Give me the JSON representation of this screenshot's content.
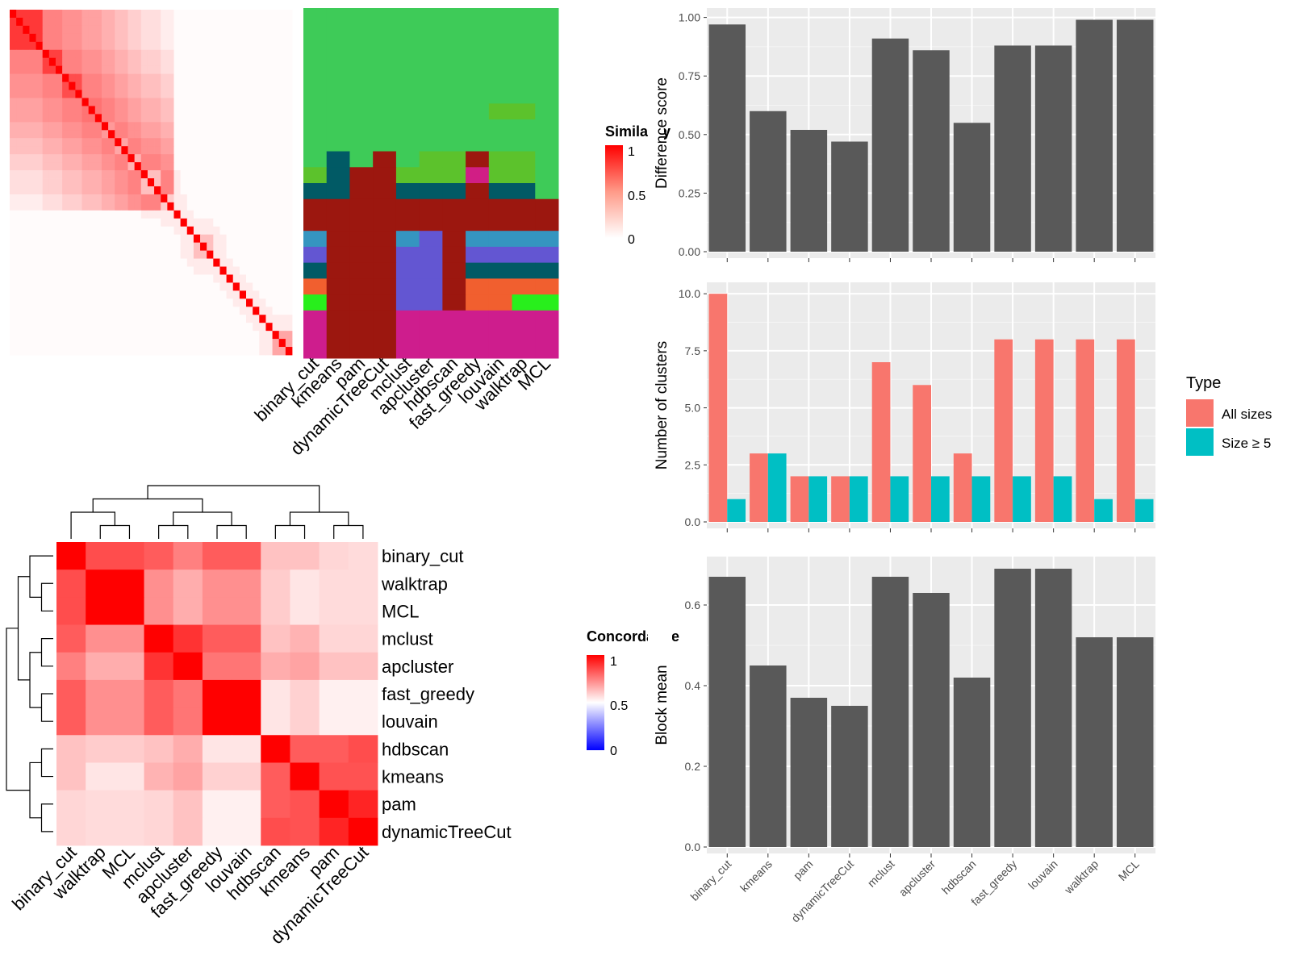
{
  "colors": {
    "panel_bg": "#ebebeb",
    "grid": "#ffffff",
    "bar_dark": "#595959",
    "all_sizes": "#f8766d",
    "size_ge5": "#00bfc4",
    "heat_high": "#ff0000",
    "heat_low": "#ffffff",
    "concordance_low": "#0000ff"
  },
  "similarity_heatmap": {
    "legend_title": "Similarity",
    "legend_ticks": [
      "1",
      "0.5",
      "0"
    ],
    "blocks": [
      {
        "size": 5,
        "within": 0.78,
        "diag": 1.0
      },
      {
        "size": 3,
        "within": 0.75,
        "diag": 1.0
      },
      {
        "size": 3,
        "within": 0.7,
        "diag": 1.0
      },
      {
        "size": 3,
        "within": 0.55,
        "diag": 1.0
      },
      {
        "size": 2,
        "within": 0.4,
        "diag": 1.0
      },
      {
        "size": 2,
        "within": 0.35,
        "diag": 1.0
      },
      {
        "size": 2,
        "within": 0.3,
        "diag": 1.0
      },
      {
        "size": 3,
        "within": 0.25,
        "diag": 1.0
      },
      {
        "size": 2,
        "within": 0.2,
        "diag": 1.0
      },
      {
        "size": 1,
        "within": 1.0,
        "diag": 1.0
      },
      {
        "size": 1,
        "within": 1.0,
        "diag": 1.0
      },
      {
        "size": 1,
        "within": 1.0,
        "diag": 1.0
      },
      {
        "size": 3,
        "within": 0.25,
        "diag": 1.0
      },
      {
        "size": 1,
        "within": 1.0,
        "diag": 1.0
      },
      {
        "size": 1,
        "within": 1.0,
        "diag": 1.0
      },
      {
        "size": 1,
        "within": 1.0,
        "diag": 1.0
      },
      {
        "size": 1,
        "within": 1.0,
        "diag": 1.0
      },
      {
        "size": 1,
        "within": 1.0,
        "diag": 1.0
      },
      {
        "size": 1,
        "within": 1.0,
        "diag": 1.0
      },
      {
        "size": 1,
        "within": 1.0,
        "diag": 1.0
      },
      {
        "size": 1,
        "within": 1.0,
        "diag": 1.0
      },
      {
        "size": 1,
        "within": 1.0,
        "diag": 1.0
      },
      {
        "size": 3,
        "within": 0.35,
        "diag": 1.0
      }
    ],
    "cross_block_value": 0.08
  },
  "cluster_labels": {
    "methods": [
      "binary_cut",
      "kmeans",
      "pam",
      "dynamicTreeCut",
      "mclust",
      "apcluster",
      "hdbscan",
      "fast_greedy",
      "louvain",
      "walktrap",
      "MCL"
    ],
    "palette": {
      "G": "#3ecb58",
      "g": "#5cc22c",
      "T": "#015a65",
      "R": "#9c170f",
      "B": "#3595c0",
      "P": "#6356d2",
      "O": "#f15f2f",
      "L": "#28ef1c",
      "M": "#ce1d8d",
      "K": "#d11e85"
    },
    "segments": [
      {
        "rows": 6,
        "values": [
          "G",
          "G",
          "G",
          "G",
          "G",
          "G",
          "G",
          "G",
          "G",
          "G",
          "G"
        ]
      },
      {
        "rows": 1,
        "values": [
          "G",
          "G",
          "G",
          "G",
          "G",
          "G",
          "G",
          "G",
          "g",
          "g",
          "G"
        ]
      },
      {
        "rows": 2,
        "values": [
          "G",
          "G",
          "G",
          "G",
          "G",
          "G",
          "G",
          "G",
          "G",
          "G",
          "G"
        ]
      },
      {
        "rows": 1,
        "values": [
          "G",
          "T",
          "G",
          "R",
          "G",
          "g",
          "g",
          "R",
          "g",
          "g",
          "G"
        ]
      },
      {
        "rows": 1,
        "values": [
          "g",
          "T",
          "R",
          "R",
          "g",
          "g",
          "g",
          "K",
          "g",
          "g",
          "G"
        ]
      },
      {
        "rows": 1,
        "values": [
          "T",
          "T",
          "R",
          "R",
          "T",
          "T",
          "T",
          "R",
          "T",
          "T",
          "G"
        ]
      },
      {
        "rows": 2,
        "values": [
          "R",
          "R",
          "R",
          "R",
          "R",
          "R",
          "R",
          "R",
          "R",
          "R",
          "R"
        ]
      },
      {
        "rows": 1,
        "values": [
          "B",
          "R",
          "R",
          "R",
          "B",
          "P",
          "R",
          "B",
          "B",
          "B",
          "B"
        ]
      },
      {
        "rows": 1,
        "values": [
          "P",
          "R",
          "R",
          "R",
          "P",
          "P",
          "R",
          "P",
          "P",
          "P",
          "P"
        ]
      },
      {
        "rows": 1,
        "values": [
          "T",
          "R",
          "R",
          "R",
          "P",
          "P",
          "R",
          "T",
          "T",
          "T",
          "T"
        ]
      },
      {
        "rows": 1,
        "values": [
          "O",
          "R",
          "R",
          "R",
          "P",
          "P",
          "R",
          "O",
          "O",
          "O",
          "O"
        ]
      },
      {
        "rows": 1,
        "values": [
          "L",
          "R",
          "R",
          "R",
          "P",
          "P",
          "R",
          "O",
          "O",
          "L",
          "L"
        ]
      },
      {
        "rows": 3,
        "values": [
          "M",
          "R",
          "R",
          "R",
          "M",
          "M",
          "M",
          "M",
          "M",
          "M",
          "M"
        ]
      }
    ]
  },
  "concordance_heatmap": {
    "legend_title": "Concordance",
    "legend_ticks": [
      "1",
      "0.5",
      "0"
    ],
    "row_labels": [
      "binary_cut",
      "walktrap",
      "MCL",
      "mclust",
      "apcluster",
      "fast_greedy",
      "louvain",
      "hdbscan",
      "kmeans",
      "pam",
      "dynamicTreeCut"
    ],
    "col_labels": [
      "binary_cut",
      "walktrap",
      "MCL",
      "mclust",
      "apcluster",
      "fast_greedy",
      "louvain",
      "hdbscan",
      "kmeans",
      "pam",
      "dynamicTreeCut"
    ],
    "matrix": [
      [
        1.0,
        0.85,
        0.85,
        0.82,
        0.75,
        0.82,
        0.82,
        0.62,
        0.62,
        0.58,
        0.57
      ],
      [
        0.85,
        1.0,
        1.0,
        0.72,
        0.66,
        0.72,
        0.72,
        0.6,
        0.55,
        0.57,
        0.57
      ],
      [
        0.85,
        1.0,
        1.0,
        0.72,
        0.66,
        0.72,
        0.72,
        0.6,
        0.55,
        0.57,
        0.57
      ],
      [
        0.82,
        0.72,
        0.72,
        1.0,
        0.9,
        0.82,
        0.82,
        0.62,
        0.65,
        0.58,
        0.58
      ],
      [
        0.75,
        0.66,
        0.66,
        0.9,
        1.0,
        0.77,
        0.77,
        0.66,
        0.68,
        0.62,
        0.62
      ],
      [
        0.82,
        0.72,
        0.72,
        0.82,
        0.77,
        1.0,
        1.0,
        0.55,
        0.59,
        0.53,
        0.53
      ],
      [
        0.82,
        0.72,
        0.72,
        0.82,
        0.77,
        1.0,
        1.0,
        0.55,
        0.59,
        0.53,
        0.53
      ],
      [
        0.62,
        0.6,
        0.6,
        0.62,
        0.66,
        0.55,
        0.55,
        1.0,
        0.82,
        0.82,
        0.85
      ],
      [
        0.62,
        0.55,
        0.55,
        0.65,
        0.68,
        0.59,
        0.59,
        0.82,
        1.0,
        0.84,
        0.84
      ],
      [
        0.58,
        0.57,
        0.57,
        0.58,
        0.62,
        0.53,
        0.53,
        0.82,
        0.84,
        1.0,
        0.93
      ],
      [
        0.58,
        0.57,
        0.57,
        0.58,
        0.62,
        0.53,
        0.53,
        0.85,
        0.84,
        0.93,
        1.0
      ]
    ]
  },
  "chart_data": [
    {
      "type": "bar",
      "categories": [
        "binary_cut",
        "kmeans",
        "pam",
        "dynamicTreeCut",
        "mclust",
        "apcluster",
        "hdbscan",
        "fast_greedy",
        "louvain",
        "walktrap",
        "MCL"
      ],
      "values": [
        0.97,
        0.6,
        0.52,
        0.47,
        0.91,
        0.86,
        0.55,
        0.88,
        0.88,
        0.99,
        0.99
      ],
      "ylabel": "Difference score",
      "ylim": [
        0,
        1.04
      ],
      "yticks": [
        0,
        0.25,
        0.5,
        0.75,
        1.0
      ],
      "ytick_labels": [
        "0.00",
        "0.25",
        "0.50",
        "0.75",
        "1.00"
      ],
      "grid": true
    },
    {
      "type": "bar",
      "categories": [
        "binary_cut",
        "kmeans",
        "pam",
        "dynamicTreeCut",
        "mclust",
        "apcluster",
        "hdbscan",
        "fast_greedy",
        "louvain",
        "walktrap",
        "MCL"
      ],
      "series": [
        {
          "name": "All sizes",
          "values": [
            10,
            3,
            2,
            2,
            7,
            6,
            3,
            8,
            8,
            8,
            8
          ]
        },
        {
          "name": "Size ≥ 5",
          "values": [
            1,
            3,
            2,
            2,
            2,
            2,
            2,
            2,
            2,
            1,
            1
          ]
        }
      ],
      "ylabel": "Number of clusters",
      "ylim": [
        0,
        10.5
      ],
      "yticks": [
        0,
        2.5,
        5,
        7.5,
        10
      ],
      "ytick_labels": [
        "0.0",
        "2.5",
        "5.0",
        "7.5",
        "10.0"
      ],
      "legend_title": "Type",
      "legend_position": "right",
      "grid": true
    },
    {
      "type": "bar",
      "categories": [
        "binary_cut",
        "kmeans",
        "pam",
        "dynamicTreeCut",
        "mclust",
        "apcluster",
        "hdbscan",
        "fast_greedy",
        "louvain",
        "walktrap",
        "MCL"
      ],
      "values": [
        0.67,
        0.45,
        0.37,
        0.35,
        0.67,
        0.63,
        0.42,
        0.69,
        0.69,
        0.52,
        0.52
      ],
      "ylabel": "Block mean",
      "ylim": [
        0,
        0.72
      ],
      "yticks": [
        0,
        0.2,
        0.4,
        0.6
      ],
      "ytick_labels": [
        "0.0",
        "0.2",
        "0.4",
        "0.6"
      ],
      "grid": true
    }
  ]
}
